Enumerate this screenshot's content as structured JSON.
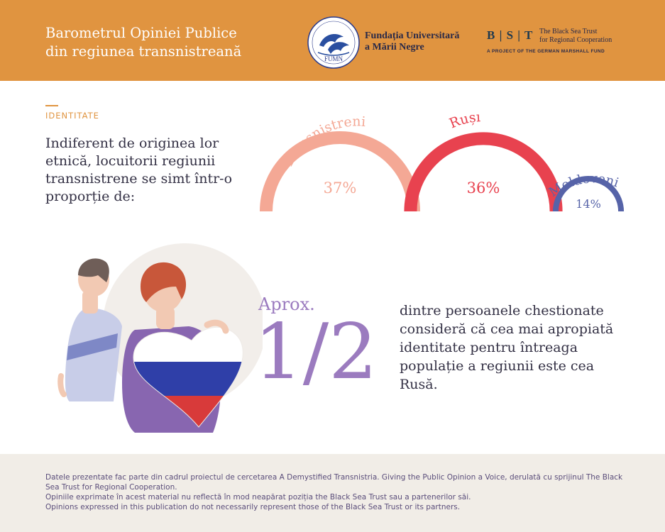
{
  "header": {
    "title_line1": "Barometrul Opiniei Publice",
    "title_line2": "din regiunea transnistreană",
    "fumn": {
      "seal_text": "FUMN",
      "name_line1": "Fundația Universitară",
      "name_line2": "a Mării Negre"
    },
    "bst": {
      "letters": "B | S | T",
      "name_line1": "The Black Sea Trust",
      "name_line2": "for Regional Cooperation",
      "tagline": "A PROJECT OF THE GERMAN MARSHALL FUND"
    }
  },
  "section": {
    "label": "IDENTITATE",
    "intro": "Indiferent de originea lor etnică, locuitorii regiunii transnistrene se simt într-o proporție de:"
  },
  "identity": {
    "items": [
      {
        "label": "Transnistreni",
        "value_label": "37%",
        "value": 37,
        "color": "#f4a895",
        "text_color": "#f4a895"
      },
      {
        "label": "Ruși",
        "value_label": "36%",
        "value": 36,
        "color": "#e8424f",
        "text_color": "#e8424f"
      },
      {
        "label": "Moldoveni",
        "value_label": "14%",
        "value": 14,
        "color": "#5663a8",
        "text_color": "#5663a8"
      }
    ]
  },
  "stat": {
    "prefix": "Aprox.",
    "value": "1/2",
    "description": "dintre persoanele chestionate consideră că cea mai apropiată identitate pentru întreaga populație a regiunii este cea Rusă."
  },
  "footer": {
    "line1": "Datele prezentate fac parte din cadrul proiectul de cercetarea A Demystified Transnistria. Giving the Public Opinion a Voice, derulată cu sprijinul The Black Sea Trust for Regional Cooperation.",
    "line2": "Opiniile exprimate în acest material nu reflectă  în mod neapărat poziția  the Black Sea Trust sau a partenerilor săi.",
    "line3": "Opinions expressed in this publication do not necessarily represent those of the Black Sea Trust or its partners."
  },
  "colors": {
    "header_bg": "#e09440",
    "accent_purple": "#9b7bbf",
    "footer_bg": "#f1ede7"
  }
}
